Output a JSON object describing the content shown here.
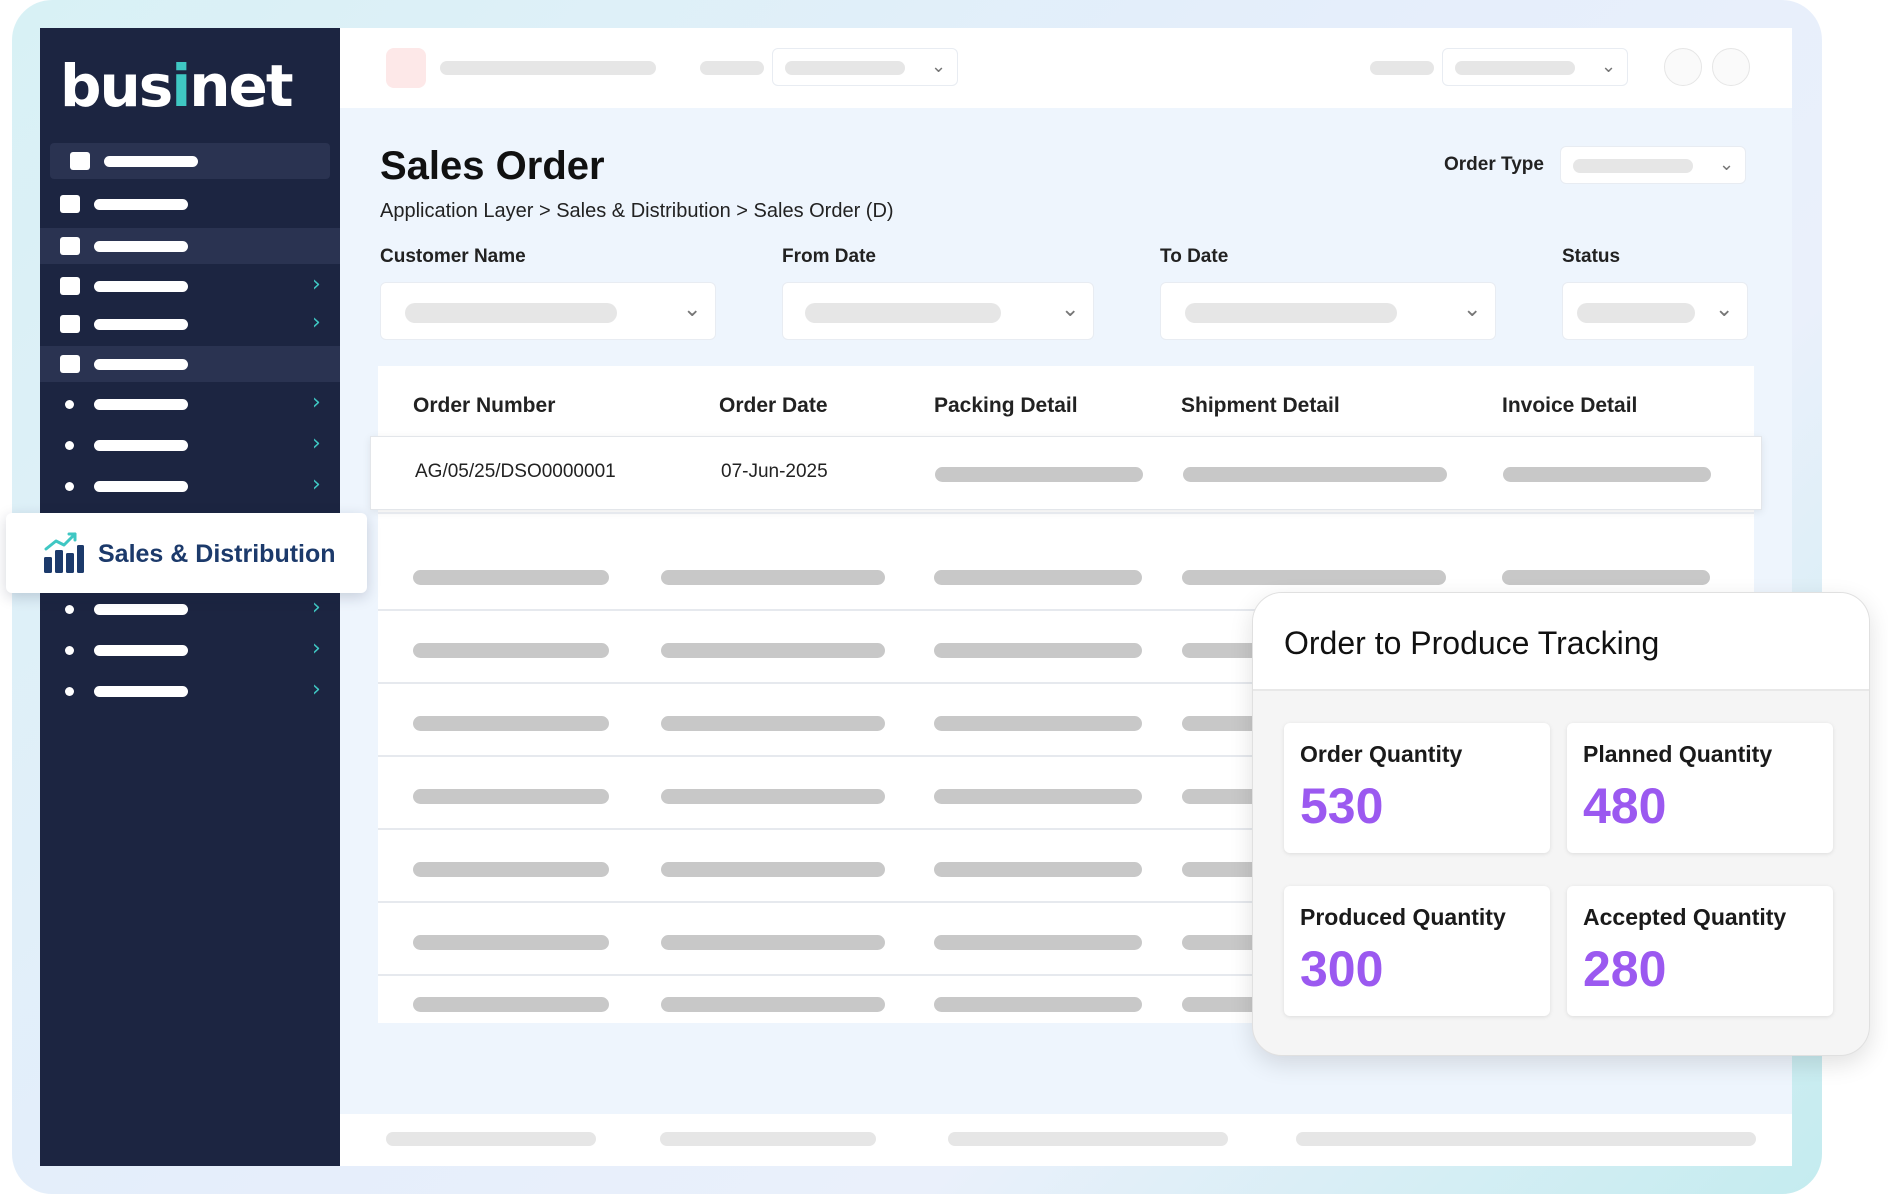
{
  "brand": {
    "logo_text_left": "bus",
    "logo_text_accent": "i",
    "logo_text_right": "net",
    "accent_color": "#3fc7c3",
    "sidebar_color": "#1c2541"
  },
  "sidebar": {
    "active_section": {
      "label": "Sales & Distribution",
      "icon": "bar-chart-growth-icon"
    }
  },
  "page": {
    "title": "Sales Order",
    "breadcrumb": "Application Layer > Sales & Distribution > Sales Order (D)",
    "order_type_label": "Order Type"
  },
  "filters": {
    "customer_name": "Customer Name",
    "from_date": "From Date",
    "to_date": "To Date",
    "status": "Status"
  },
  "table": {
    "columns": [
      "Order Number",
      "Order Date",
      "Packing Detail",
      "Shipment Detail",
      "Invoice Detail"
    ],
    "rows": [
      {
        "order_number": "AG/05/25/DSO0000001",
        "order_date": "07-Jun-2025"
      }
    ]
  },
  "tracking": {
    "title": "Order to Produce Tracking",
    "value_color": "#9b59f0",
    "order_quantity_label": "Order Quantity",
    "order_quantity": "530",
    "planned_quantity_label": "Planned Quantity",
    "planned_quantity": "480",
    "produced_quantity_label": "Produced Quantity",
    "produced_quantity": "300",
    "accepted_quantity_label": "Accepted Quantity",
    "accepted_quantity": "280"
  }
}
